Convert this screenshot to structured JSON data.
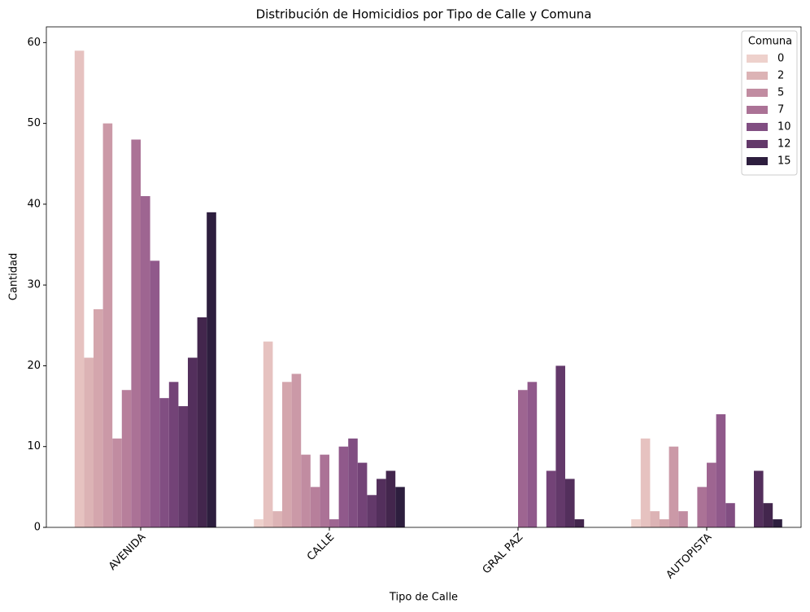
{
  "chart_data": {
    "type": "bar",
    "title": "Distribución de Homicidios por Tipo de Calle y Comuna",
    "x_label": "Tipo de Calle",
    "y_label": "Cantidad",
    "categories": [
      "AVENIDA",
      "CALLE",
      "GRAL PAZ",
      "AUTOPISTA"
    ],
    "legend": {
      "title": "Comuna",
      "position": "upper right"
    },
    "series": [
      {
        "name": "0",
        "color": "#eed1cc",
        "values": [
          null,
          1,
          null,
          1
        ]
      },
      {
        "color": "#e6c2c0",
        "values": [
          59,
          23,
          null,
          11
        ]
      },
      {
        "name": "2",
        "color": "#dcb3b5",
        "values": [
          21,
          2,
          null,
          2
        ]
      },
      {
        "color": "#d4a6ad",
        "values": [
          27,
          18,
          null,
          1
        ]
      },
      {
        "color": "#cb99a7",
        "values": [
          50,
          19,
          null,
          10
        ]
      },
      {
        "name": "5",
        "color": "#c18ca1",
        "values": [
          11,
          9,
          null,
          2
        ]
      },
      {
        "color": "#b77f9b",
        "values": [
          17,
          5,
          null,
          null
        ]
      },
      {
        "name": "7",
        "color": "#ab7296",
        "values": [
          48,
          9,
          null,
          5
        ]
      },
      {
        "color": "#9e6591",
        "values": [
          41,
          1,
          17,
          8
        ]
      },
      {
        "color": "#90598b",
        "values": [
          33,
          10,
          18,
          14
        ]
      },
      {
        "name": "10",
        "color": "#814e82",
        "values": [
          16,
          11,
          null,
          3
        ]
      },
      {
        "color": "#734377",
        "values": [
          18,
          8,
          7,
          null
        ]
      },
      {
        "name": "12",
        "color": "#63396a",
        "values": [
          15,
          4,
          20,
          null
        ]
      },
      {
        "color": "#532f5c",
        "values": [
          21,
          6,
          6,
          7
        ]
      },
      {
        "color": "#43264d",
        "values": [
          26,
          7,
          1,
          3
        ]
      },
      {
        "name": "15",
        "color": "#2d1e3e",
        "values": [
          39,
          5,
          null,
          1
        ]
      }
    ],
    "ylim": [
      0,
      61.95
    ],
    "yticks": [
      0,
      10,
      20,
      30,
      40,
      50,
      60
    ],
    "grid": false
  }
}
